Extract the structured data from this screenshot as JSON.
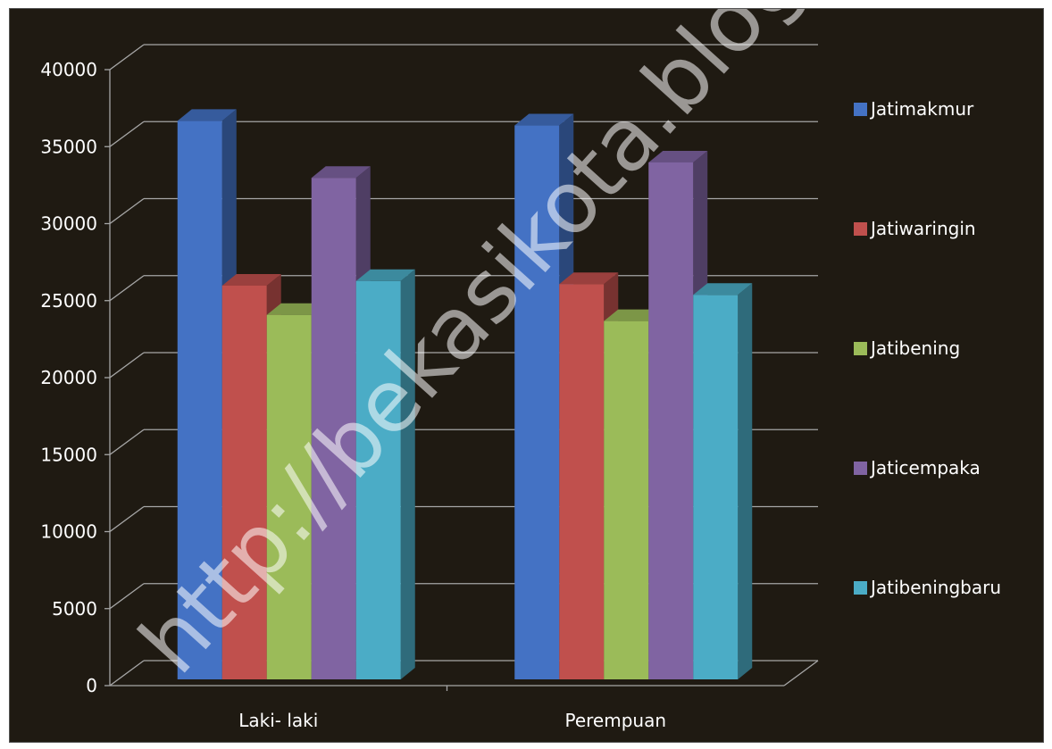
{
  "chart_data": {
    "type": "bar",
    "title": "",
    "xlabel": "",
    "ylabel": "",
    "categories": [
      "Laki- laki",
      "Perempuan"
    ],
    "ylim": [
      0,
      40000
    ],
    "yticks": [
      0,
      5000,
      10000,
      15000,
      20000,
      25000,
      30000,
      35000,
      40000
    ],
    "grid": true,
    "legend_position": "right",
    "series": [
      {
        "name": "Jatimakmur",
        "color": "#4472c4",
        "values": [
          36500,
          36200
        ]
      },
      {
        "name": "Jatiwaringin",
        "color": "#c0504d",
        "values": [
          25800,
          25900
        ]
      },
      {
        "name": "Jatibening",
        "color": "#9bbb59",
        "values": [
          23900,
          23500
        ]
      },
      {
        "name": "Jaticempaka",
        "color": "#8064a2",
        "values": [
          32800,
          33800
        ]
      },
      {
        "name": "Jatibeningbaru",
        "color": "#4bacc6",
        "values": [
          26100,
          25200
        ]
      }
    ]
  },
  "watermark": "http://bekasikota.blogspot.com"
}
